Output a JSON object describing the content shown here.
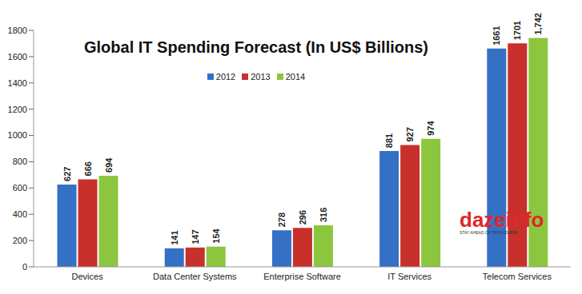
{
  "chart_data": {
    "type": "bar",
    "title": "Global IT Spending Forecast (In US$ Billions)",
    "categories": [
      "Devices",
      "Data Center Systems",
      "Enterprise Software",
      "IT Services",
      "Telecom Services"
    ],
    "series": [
      {
        "name": "2012",
        "color": "#3470c4",
        "values": [
          627,
          141,
          278,
          881,
          1661
        ]
      },
      {
        "name": "2013",
        "color": "#c8302b",
        "values": [
          666,
          147,
          296,
          927,
          1701
        ]
      },
      {
        "name": "2014",
        "color": "#8cc63e",
        "values": [
          694,
          154,
          316,
          974,
          1742
        ],
        "value_labels": [
          "694",
          "154",
          "316",
          "974",
          "1,742"
        ]
      }
    ],
    "ylim": [
      0,
      1800
    ],
    "yticks": [
      0,
      200,
      400,
      600,
      800,
      1000,
      1200,
      1400,
      1600,
      1800
    ],
    "grid": false,
    "legend": "top",
    "data_labels": true,
    "annotations": [
      "dazeinfo",
      "STAY AHEAD OF TECH CURVE"
    ]
  }
}
